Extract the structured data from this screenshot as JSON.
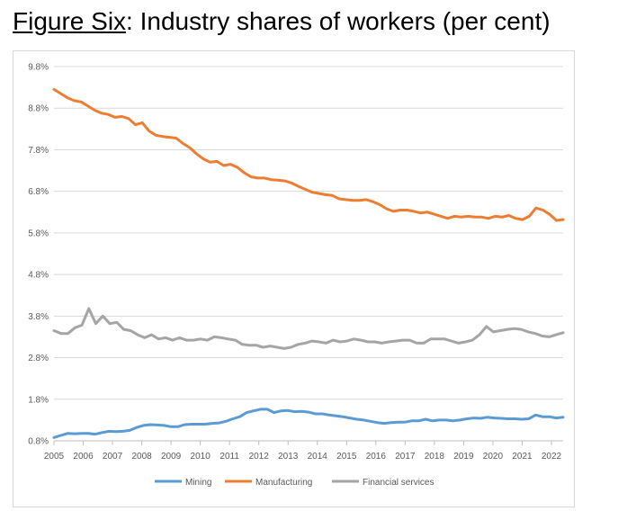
{
  "figure": {
    "label": "Figure Six",
    "separator": ":",
    "title": "Industry shares of workers (per cent)"
  },
  "chart_data": {
    "type": "line",
    "ylim": [
      0.8,
      9.8
    ],
    "yticks": [
      "0.8%",
      "1.8%",
      "2.8%",
      "3.8%",
      "4.8%",
      "5.8%",
      "6.8%",
      "7.8%",
      "8.8%",
      "9.8%"
    ],
    "xlim": [
      2005,
      2022.4
    ],
    "xticks": [
      "2005",
      "2006",
      "2007",
      "2008",
      "2009",
      "2010",
      "2011",
      "2012",
      "2013",
      "2014",
      "2015",
      "2016",
      "2017",
      "2018",
      "2019",
      "2020",
      "2021",
      "2022"
    ],
    "grid": true,
    "legend_position": "bottom",
    "series": [
      {
        "name": "Mining",
        "color": "#5b9bd5",
        "values": [
          0.88,
          0.93,
          0.98,
          0.97,
          0.98,
          0.98,
          0.96,
          1.0,
          1.03,
          1.02,
          1.03,
          1.05,
          1.12,
          1.17,
          1.19,
          1.18,
          1.17,
          1.14,
          1.14,
          1.19,
          1.2,
          1.2,
          1.2,
          1.22,
          1.23,
          1.27,
          1.33,
          1.38,
          1.48,
          1.52,
          1.56,
          1.56,
          1.48,
          1.52,
          1.53,
          1.5,
          1.51,
          1.49,
          1.45,
          1.45,
          1.42,
          1.4,
          1.38,
          1.35,
          1.32,
          1.3,
          1.27,
          1.24,
          1.22,
          1.24,
          1.25,
          1.25,
          1.28,
          1.28,
          1.32,
          1.28,
          1.3,
          1.3,
          1.28,
          1.3,
          1.33,
          1.35,
          1.34,
          1.37,
          1.35,
          1.34,
          1.33,
          1.33,
          1.32,
          1.33,
          1.42,
          1.38,
          1.38,
          1.35,
          1.37
        ]
      },
      {
        "name": "Manufacturing",
        "color": "#ed7d31",
        "values": [
          9.25,
          9.15,
          9.05,
          8.98,
          8.95,
          8.85,
          8.75,
          8.68,
          8.65,
          8.58,
          8.6,
          8.55,
          8.4,
          8.45,
          8.25,
          8.15,
          8.12,
          8.1,
          8.08,
          7.95,
          7.85,
          7.7,
          7.58,
          7.5,
          7.52,
          7.42,
          7.45,
          7.38,
          7.25,
          7.15,
          7.12,
          7.12,
          7.08,
          7.07,
          7.05,
          7.0,
          6.92,
          6.85,
          6.78,
          6.75,
          6.72,
          6.7,
          6.62,
          6.6,
          6.58,
          6.58,
          6.6,
          6.55,
          6.48,
          6.38,
          6.32,
          6.35,
          6.35,
          6.32,
          6.28,
          6.3,
          6.25,
          6.2,
          6.15,
          6.2,
          6.18,
          6.2,
          6.18,
          6.18,
          6.15,
          6.2,
          6.18,
          6.22,
          6.15,
          6.12,
          6.2,
          6.4,
          6.35,
          6.25,
          6.1,
          6.12
        ]
      },
      {
        "name": "Financial services",
        "color": "#a5a5a5",
        "values": [
          3.45,
          3.38,
          3.38,
          3.52,
          3.58,
          3.98,
          3.62,
          3.8,
          3.62,
          3.65,
          3.48,
          3.45,
          3.35,
          3.28,
          3.35,
          3.25,
          3.28,
          3.22,
          3.28,
          3.22,
          3.22,
          3.25,
          3.22,
          3.3,
          3.28,
          3.25,
          3.22,
          3.12,
          3.1,
          3.1,
          3.05,
          3.08,
          3.05,
          3.02,
          3.05,
          3.12,
          3.15,
          3.2,
          3.18,
          3.15,
          3.22,
          3.18,
          3.2,
          3.25,
          3.22,
          3.18,
          3.18,
          3.15,
          3.18,
          3.2,
          3.22,
          3.22,
          3.15,
          3.15,
          3.25,
          3.25,
          3.25,
          3.2,
          3.15,
          3.18,
          3.22,
          3.35,
          3.55,
          3.42,
          3.45,
          3.48,
          3.5,
          3.48,
          3.42,
          3.38,
          3.32,
          3.3,
          3.35,
          3.4
        ]
      }
    ]
  }
}
